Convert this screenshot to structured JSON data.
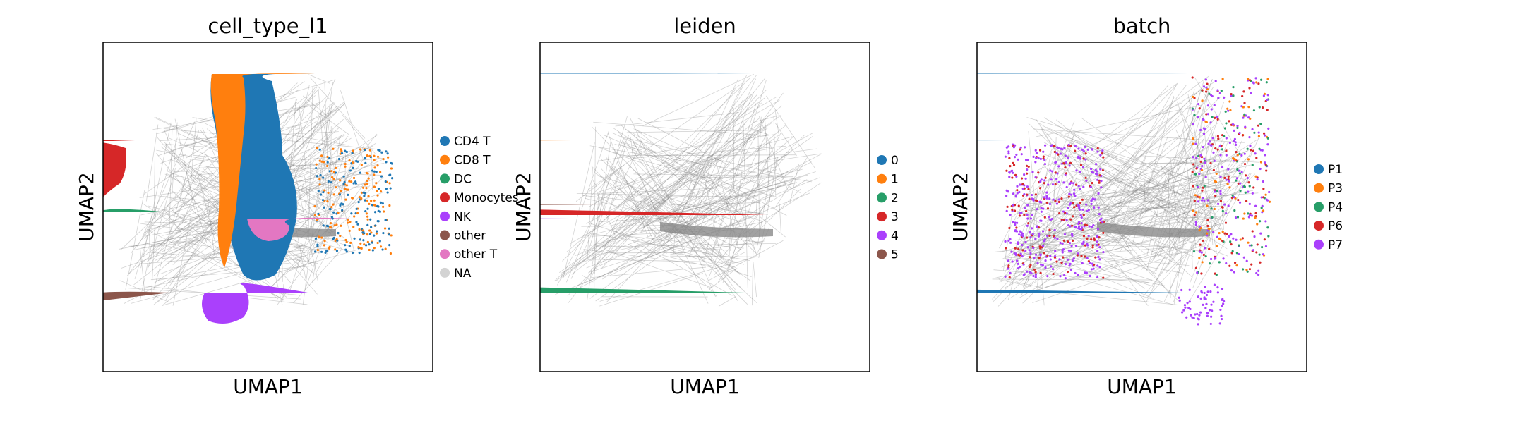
{
  "chart_data": [
    {
      "type": "scatter",
      "title": "cell_type_l1",
      "xlabel": "UMAP1",
      "ylabel": "UMAP2",
      "legend_position": "right",
      "grid": false,
      "legend": [
        {
          "label": "CD4 T",
          "color": "#1f77b4"
        },
        {
          "label": "CD8 T",
          "color": "#ff7f0e"
        },
        {
          "label": "DC",
          "color": "#279e68"
        },
        {
          "label": "Monocytes",
          "color": "#d62728"
        },
        {
          "label": "NK",
          "color": "#aa40fc"
        },
        {
          "label": "other",
          "color": "#8c564b"
        },
        {
          "label": "other T",
          "color": "#e377c2"
        },
        {
          "label": "NA",
          "color": "#d3d3d3"
        }
      ]
    },
    {
      "type": "scatter",
      "title": "leiden",
      "xlabel": "UMAP1",
      "ylabel": "UMAP2",
      "legend_position": "right",
      "grid": false,
      "legend": [
        {
          "label": "0",
          "color": "#1f77b4"
        },
        {
          "label": "1",
          "color": "#ff7f0e"
        },
        {
          "label": "2",
          "color": "#279e68"
        },
        {
          "label": "3",
          "color": "#d62728"
        },
        {
          "label": "4",
          "color": "#aa40fc"
        },
        {
          "label": "5",
          "color": "#8c564b"
        }
      ]
    },
    {
      "type": "scatter",
      "title": "batch",
      "xlabel": "UMAP1",
      "ylabel": "UMAP2",
      "legend_position": "right",
      "grid": false,
      "legend": [
        {
          "label": "P1",
          "color": "#1f77b4"
        },
        {
          "label": "P3",
          "color": "#ff7f0e"
        },
        {
          "label": "P4",
          "color": "#279e68"
        },
        {
          "label": "P6",
          "color": "#d62728"
        },
        {
          "label": "P7",
          "color": "#aa40fc"
        }
      ]
    }
  ]
}
